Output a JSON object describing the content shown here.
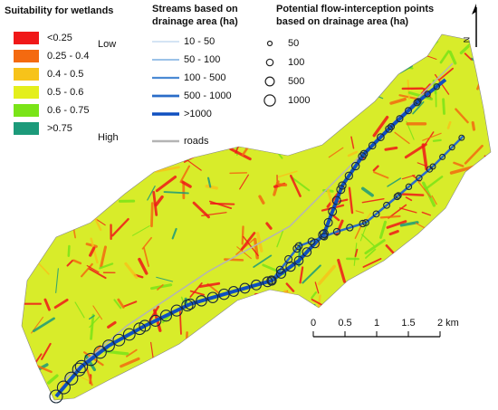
{
  "legends": {
    "suitability": {
      "title": "Suitability for wetlands",
      "classes": [
        {
          "label": "<0.25",
          "color": "#f01818"
        },
        {
          "label": "0.25 - 0.4",
          "color": "#f46a10"
        },
        {
          "label": "0.4 - 0.5",
          "color": "#f7c31a"
        },
        {
          "label": "0.5 - 0.6",
          "color": "#e4ef1c"
        },
        {
          "label": "0.6 - 0.75",
          "color": "#7ae418"
        },
        {
          "label": ">0.75",
          "color": "#1c9a7a"
        }
      ],
      "low": "Low",
      "high": "High"
    },
    "streams": {
      "title_lines": [
        "Streams based on",
        "drainage area (ha)"
      ],
      "items": [
        {
          "label": "10 - 50",
          "color": "#a8c8e8"
        },
        {
          "label": "50 - 100",
          "color": "#7aaee0"
        },
        {
          "label": "100 - 500",
          "color": "#4a8ad4"
        },
        {
          "label": "500 - 1000",
          "color": "#2a6cc8"
        },
        {
          "label": ">1000",
          "color": "#1050c0"
        }
      ],
      "roads": {
        "label": "roads",
        "color": "#b4b4b4"
      }
    },
    "points": {
      "title_lines": [
        "Potential flow-interception points",
        "based on drainage area (ha)"
      ],
      "items": [
        "50",
        "100",
        "500",
        "1000"
      ]
    }
  },
  "scale_bar": {
    "labels": [
      "0",
      "0.5",
      "1",
      "1.5",
      "2 km"
    ]
  },
  "north_arrow": "N"
}
